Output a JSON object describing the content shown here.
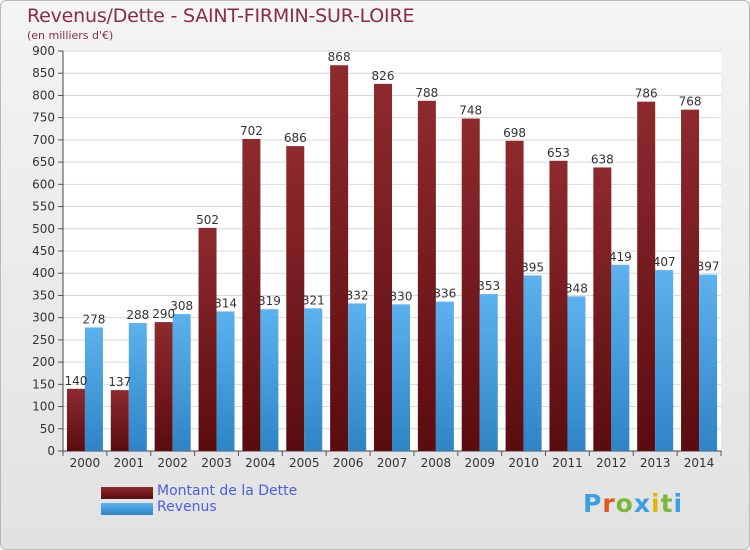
{
  "title": "Revenus/Dette - SAINT-FIRMIN-SUR-LOIRE",
  "subtitle": "(en milliers d'€)",
  "logo": {
    "text": "Proxiti",
    "letters": [
      "P",
      "r",
      "o",
      "x",
      "i",
      "t",
      "i"
    ],
    "colors": [
      "#3aa0e0",
      "#e05a1e",
      "#7ab83c",
      "#3aa0e0",
      "#e0b800",
      "#7ab83c",
      "#3aa0e0"
    ]
  },
  "colors": {
    "dette": "#7a1418",
    "revenus": "#3c99de",
    "dette_light": "#9a3438",
    "revenus_light": "#5fb0ec"
  },
  "chart_data": {
    "type": "bar",
    "categories": [
      "2000",
      "2001",
      "2002",
      "2003",
      "2004",
      "2005",
      "2006",
      "2007",
      "2008",
      "2009",
      "2010",
      "2011",
      "2012",
      "2013",
      "2014"
    ],
    "series": [
      {
        "name": "Montant de la Dette",
        "values": [
          140,
          137,
          290,
          502,
          702,
          686,
          868,
          826,
          788,
          748,
          698,
          653,
          638,
          786,
          768
        ]
      },
      {
        "name": "Revenus",
        "values": [
          278,
          288,
          308,
          314,
          319,
          321,
          332,
          330,
          336,
          353,
          395,
          348,
          419,
          407,
          397
        ]
      }
    ],
    "yticks": [
      0,
      50,
      100,
      150,
      200,
      250,
      300,
      350,
      400,
      450,
      500,
      550,
      600,
      650,
      700,
      750,
      800,
      850,
      900
    ],
    "ylim": [
      0,
      900
    ],
    "grid": true,
    "legend_position": "bottom-left"
  }
}
